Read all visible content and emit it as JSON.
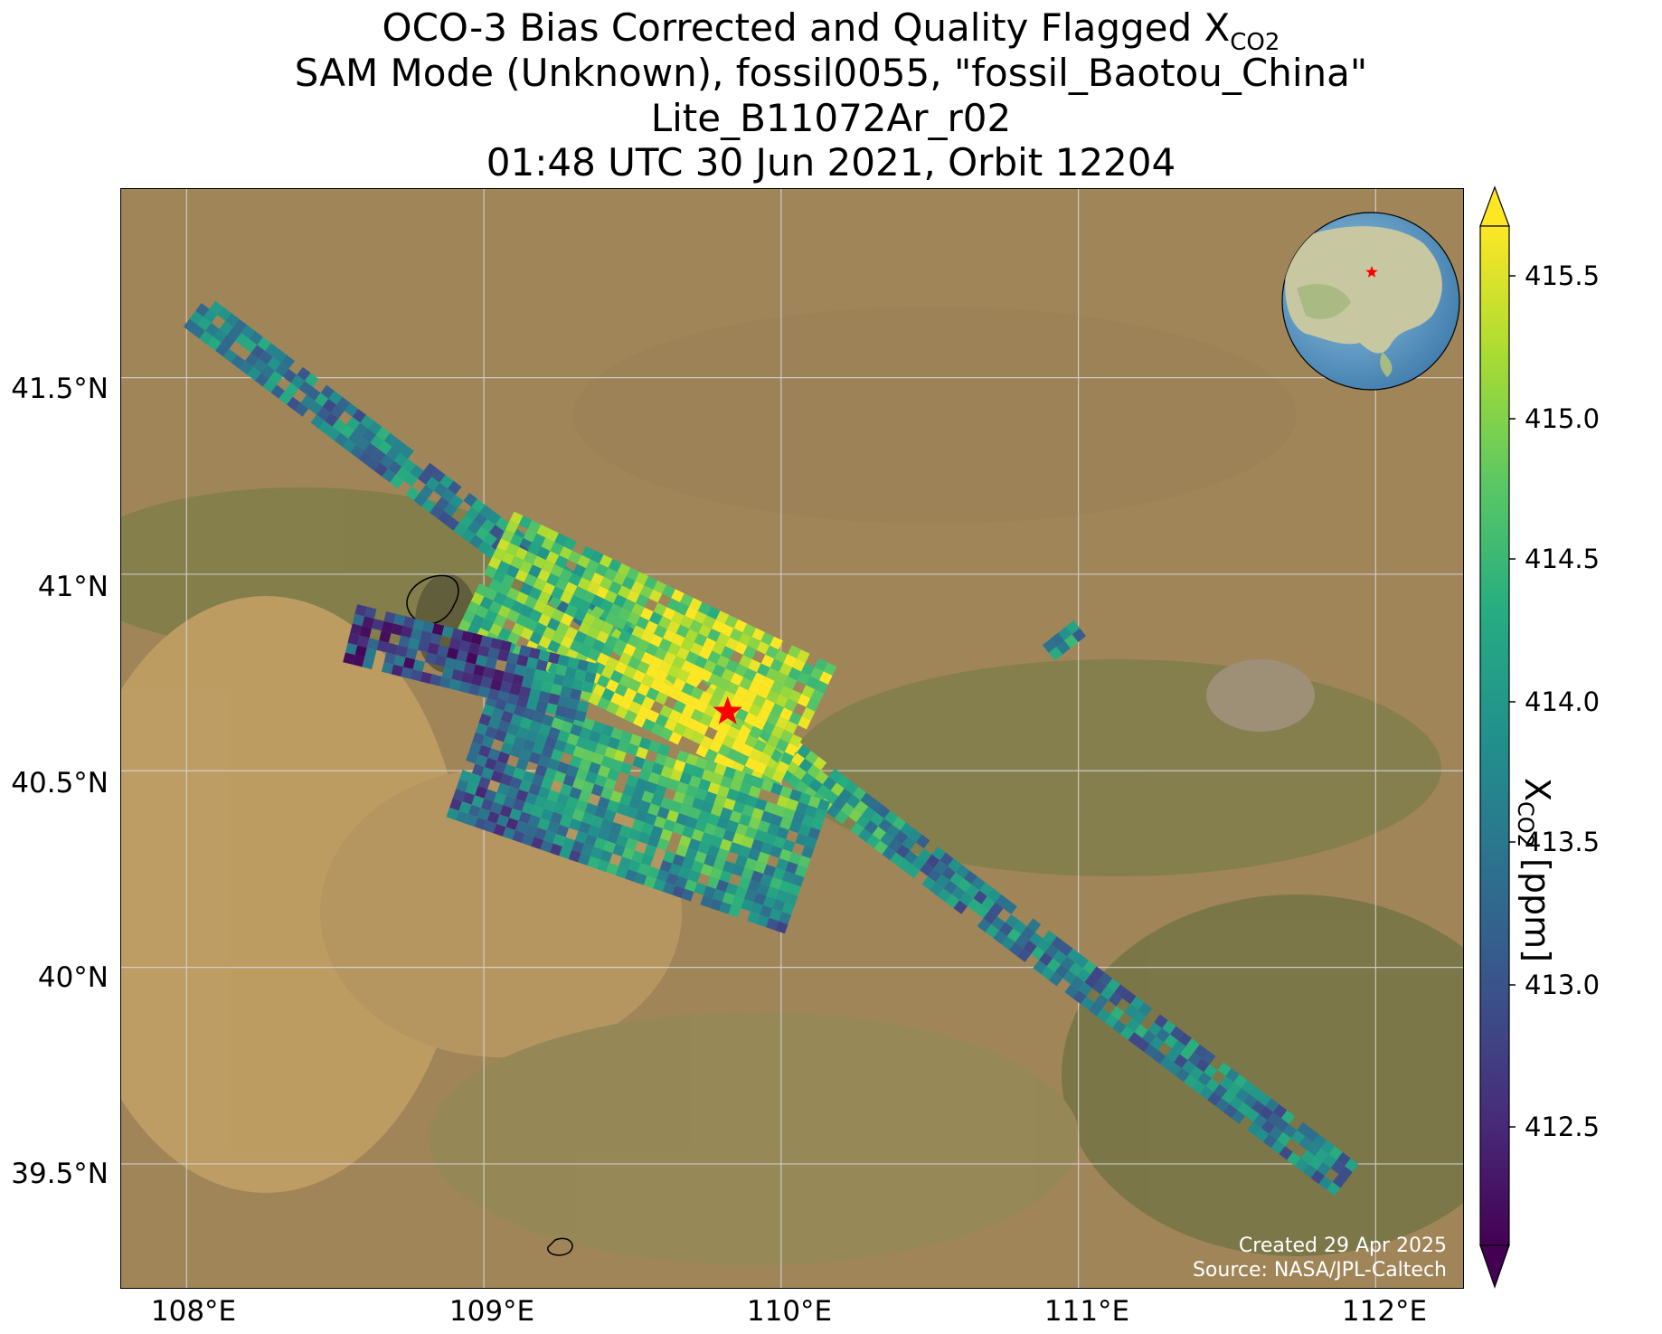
{
  "title": {
    "line1_prefix": "OCO-3 Bias Corrected and Quality Flagged X",
    "line1_sub": "CO2",
    "line2": "SAM Mode (Unknown), fossil0055, \"fossil_Baotou_China\"",
    "line3": "Lite_B11072Ar_r02",
    "line4": "01:48 UTC 30 Jun 2021, Orbit 12204"
  },
  "map": {
    "lon_range": [
      107.78,
      112.3
    ],
    "lat_range": [
      39.18,
      41.98
    ],
    "x_ticks": [
      "108°E",
      "109°E",
      "110°E",
      "111°E",
      "112°E"
    ],
    "y_ticks": [
      "41.5°N",
      "41°N",
      "40.5°N",
      "40°N",
      "39.5°N"
    ],
    "target_marker": {
      "lon": 109.82,
      "lat": 40.65,
      "icon": "star-icon",
      "color": "#ff0000"
    },
    "credit_line1": "Created 29 Apr 2025",
    "credit_line2": "Source: NASA/JPL-Caltech",
    "inset_globe": {
      "center": "East Asia",
      "marker": "red star"
    }
  },
  "colorbar": {
    "label_prefix": "X",
    "label_sub": "CO2",
    "label_suffix": " [ppm]",
    "range": [
      412.05,
      415.65
    ],
    "ticks": [
      "415.5",
      "415.0",
      "414.5",
      "414.0",
      "413.5",
      "413.0",
      "412.5"
    ],
    "colormap": "viridis",
    "extend": "both"
  },
  "chart_data": {
    "type": "heatmap",
    "title": "OCO-3 Bias Corrected and Quality Flagged XCO2",
    "colorbar_label": "XCO2 [ppm]",
    "value_range": [
      412.05,
      415.65
    ],
    "swaths": [
      {
        "name": "main swath",
        "start": [
          108.03,
          41.67
        ],
        "end": [
          111.9,
          39.46
        ],
        "width_deg_lat": 0.1,
        "mean_xco2": 413.6
      },
      {
        "name": "upper swath",
        "start": [
          109.0,
          41.0
        ],
        "end": [
          110.1,
          40.6
        ],
        "width_deg_lat": 0.35,
        "mean_xco2": 414.6
      },
      {
        "name": "lower swath",
        "start": [
          108.95,
          40.55
        ],
        "end": [
          110.1,
          40.25
        ],
        "width_deg_lat": 0.35,
        "mean_xco2": 413.2
      },
      {
        "name": "western strip",
        "start": [
          108.55,
          40.85
        ],
        "end": [
          109.35,
          40.7
        ],
        "width_deg_lat": 0.15,
        "mean_xco2": 412.9
      },
      {
        "name": "small strip",
        "start": [
          110.9,
          40.8
        ],
        "end": [
          111.0,
          40.86
        ],
        "width_deg_lat": 0.03,
        "mean_xco2": 413.8
      }
    ],
    "hotspot": {
      "lon": 109.8,
      "lat": 40.63,
      "xco2": 415.5
    }
  }
}
